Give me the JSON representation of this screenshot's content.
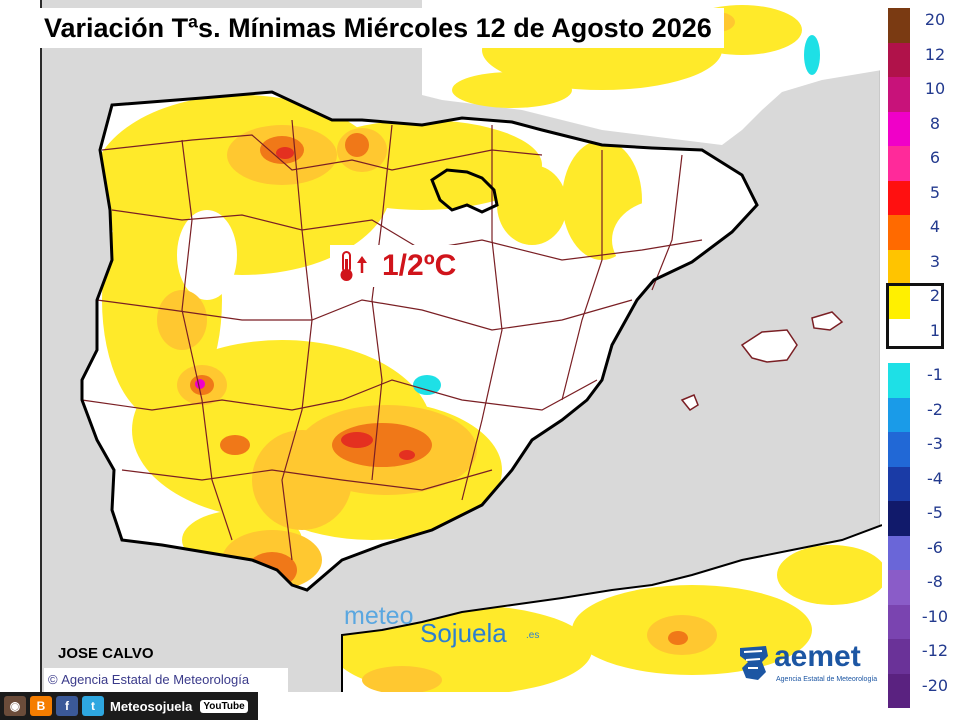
{
  "title": "Variación Tªs. Mínimas Miércoles 12 de Agosto 2026",
  "annotation": {
    "value": "1/2ºC",
    "icon": "thermometer-up-icon"
  },
  "legend": {
    "positive": [
      {
        "label": "20",
        "color": "#7a3a12"
      },
      {
        "label": "12",
        "color": "#b0124a"
      },
      {
        "label": "10",
        "color": "#c8127a"
      },
      {
        "label": "8",
        "color": "#f000c8"
      },
      {
        "label": "6",
        "color": "#ff2a9a"
      },
      {
        "label": "5",
        "color": "#ff1010"
      },
      {
        "label": "4",
        "color": "#ff6a00"
      },
      {
        "label": "3",
        "color": "#ffc400"
      },
      {
        "label": "2",
        "color": "#fff000"
      },
      {
        "label": "1",
        "color": "#ffffff"
      }
    ],
    "negative": [
      {
        "label": "-1",
        "color": "#1ee0e6"
      },
      {
        "label": "-2",
        "color": "#1a9be8"
      },
      {
        "label": "-3",
        "color": "#2168d6"
      },
      {
        "label": "-4",
        "color": "#1a3ba6"
      },
      {
        "label": "-5",
        "color": "#111a6b"
      },
      {
        "label": "-6",
        "color": "#6a66d8"
      },
      {
        "label": "-8",
        "color": "#8a5cc8"
      },
      {
        "label": "-10",
        "color": "#7a44b0"
      },
      {
        "label": "-12",
        "color": "#6a3298"
      },
      {
        "label": "-20",
        "color": "#5a2280"
      }
    ],
    "highlighted_range": "1 to 2"
  },
  "author": "JOSE CALVO",
  "copyright": "Agencia Estatal de Meteorología",
  "social": {
    "handle": "Meteosojuela",
    "youtube": "YouTube",
    "icons": [
      "instagram-icon",
      "blogger-icon",
      "facebook-icon",
      "twitter-icon"
    ]
  },
  "brand": {
    "meteo": "meteo",
    "sojuela": "Sojuela",
    "es": ".es"
  },
  "aemet": {
    "name": "aemet",
    "sub": "Agencia Estatal de Meteorología"
  },
  "colors": {
    "land_base": "#ffffff",
    "sea": "#d9d9d9",
    "warm_1": "#ffea2a",
    "warm_2": "#ffc830",
    "warm_3": "#f07818",
    "warm_4": "#e43020",
    "cold_1": "#1ee0e6",
    "border": "#7a1f24",
    "coast": "#000000"
  }
}
